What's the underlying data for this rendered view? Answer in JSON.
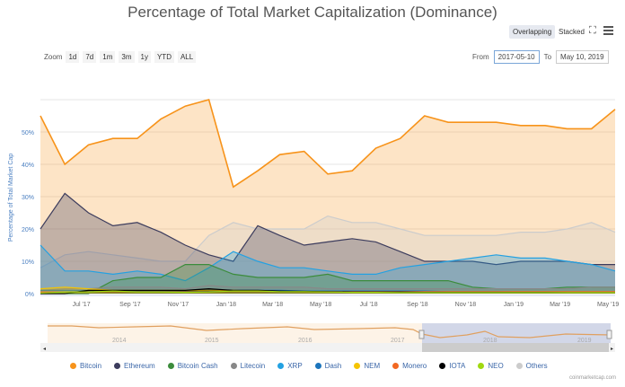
{
  "header": {
    "title": "Percentage of Total Market Capitalization (Dominance)",
    "overlapping": "Overlapping",
    "stacked": "Stacked"
  },
  "zoom": {
    "label": "Zoom",
    "buttons": [
      "1d",
      "7d",
      "1m",
      "3m",
      "1y",
      "YTD",
      "ALL"
    ]
  },
  "range": {
    "from_label": "From",
    "from": "2017-05-10",
    "to_label": "To",
    "to": "May 10, 2019"
  },
  "source": "coinmarketcap.com",
  "chart_data": {
    "type": "area",
    "title": "Percentage of Total Market Capitalization (Dominance)",
    "ylabel": "Percentage of Total Market Cap",
    "ylim": [
      0,
      60
    ],
    "yticks": [
      "0%",
      "10%",
      "20%",
      "30%",
      "40%",
      "50%"
    ],
    "xticks": [
      "Jul '17",
      "Sep '17",
      "Nov '17",
      "Jan '18",
      "Mar '18",
      "May '18",
      "Jul '18",
      "Sep '18",
      "Nov '18",
      "Jan '19",
      "Mar '19",
      "May '19"
    ],
    "xrange": [
      "2017-05-10",
      "2019-05-10"
    ],
    "grid": true,
    "legend": "bottom",
    "navigator_labels": [
      "2014",
      "2015",
      "2016",
      "2017",
      "2018",
      "2019"
    ],
    "dates": [
      "2017-05-10",
      "2017-06-10",
      "2017-07-10",
      "2017-08-10",
      "2017-09-10",
      "2017-10-10",
      "2017-11-10",
      "2017-12-10",
      "2018-01-10",
      "2018-02-10",
      "2018-03-10",
      "2018-04-10",
      "2018-05-10",
      "2018-06-10",
      "2018-07-10",
      "2018-08-10",
      "2018-09-10",
      "2018-10-10",
      "2018-11-10",
      "2018-12-10",
      "2019-01-10",
      "2019-02-10",
      "2019-03-10",
      "2019-04-10",
      "2019-05-10"
    ],
    "series": [
      {
        "name": "Bitcoin",
        "color": "#f7931a",
        "values": [
          55,
          40,
          46,
          48,
          48,
          54,
          58,
          60,
          33,
          38,
          43,
          44,
          37,
          38,
          45,
          48,
          55,
          53,
          53,
          53,
          52,
          52,
          51,
          51,
          57
        ]
      },
      {
        "name": "Others",
        "color": "#cccccc",
        "values": [
          8,
          12,
          13,
          12,
          11,
          10,
          10,
          18,
          22,
          20,
          20,
          20,
          24,
          22,
          22,
          20,
          18,
          18,
          18,
          18,
          19,
          19,
          20,
          22,
          19
        ]
      },
      {
        "name": "Ethereum",
        "color": "#3c3c5d",
        "values": [
          20,
          31,
          25,
          21,
          22,
          19,
          15,
          12,
          10,
          21,
          18,
          15,
          16,
          17,
          16,
          13,
          10,
          10,
          10,
          9,
          10,
          10,
          10,
          9,
          9
        ]
      },
      {
        "name": "XRP",
        "color": "#23a1e2",
        "values": [
          15,
          7,
          7,
          6,
          7,
          6,
          4,
          8,
          13,
          10,
          8,
          8,
          7,
          6,
          6,
          8,
          9,
          10,
          11,
          12,
          11,
          11,
          10,
          9,
          7
        ]
      },
      {
        "name": "Bitcoin Cash",
        "color": "#3c8c3c",
        "values": [
          0,
          0,
          0,
          4,
          5,
          5,
          9,
          9,
          6,
          5,
          5,
          5,
          6,
          4,
          4,
          4,
          4,
          4,
          2,
          1.5,
          1.5,
          1.5,
          2,
          2,
          2
        ]
      },
      {
        "name": "Litecoin",
        "color": "#888888",
        "values": [
          1,
          1.5,
          1.5,
          2,
          2,
          2,
          1.5,
          2.5,
          2,
          2,
          2,
          2,
          1.5,
          1.5,
          1.5,
          1.5,
          1.5,
          1.5,
          1.5,
          1.5,
          1.5,
          1.5,
          1.5,
          2,
          2
        ]
      },
      {
        "name": "Dash",
        "color": "#1c75bc",
        "values": [
          1,
          1,
          1,
          1,
          1,
          1,
          1,
          1,
          1,
          1,
          1,
          0.8,
          0.8,
          0.8,
          0.8,
          0.8,
          0.8,
          0.6,
          0.6,
          0.6,
          0.5,
          0.5,
          0.5,
          0.5,
          0.5
        ]
      },
      {
        "name": "NEM",
        "color": "#f5c400",
        "values": [
          1.5,
          2,
          1.5,
          1,
          1,
          1,
          1,
          1,
          1,
          0.8,
          0.6,
          0.5,
          0.5,
          0.4,
          0.4,
          0.4,
          0.4,
          0.3,
          0.3,
          0.3,
          0.3,
          0.3,
          0.3,
          0.3,
          0.3
        ]
      },
      {
        "name": "Monero",
        "color": "#f26822",
        "values": [
          0.5,
          0.5,
          0.5,
          0.5,
          0.5,
          0.5,
          0.5,
          0.5,
          0.6,
          0.6,
          0.6,
          0.6,
          0.6,
          0.6,
          0.6,
          0.6,
          0.6,
          0.6,
          0.6,
          0.6,
          0.6,
          0.6,
          0.6,
          0.6,
          0.6
        ]
      },
      {
        "name": "IOTA",
        "color": "#000000",
        "values": [
          0,
          0,
          1,
          1,
          1,
          1,
          1,
          1.5,
          1,
          1,
          0.8,
          0.7,
          0.6,
          0.5,
          0.5,
          0.5,
          0.4,
          0.4,
          0.4,
          0.4,
          0.4,
          0.4,
          0.3,
          0.3,
          0.3
        ]
      },
      {
        "name": "NEO",
        "color": "#a0d911",
        "values": [
          0.2,
          0.5,
          0.5,
          0.8,
          0.5,
          0.5,
          0.4,
          0.5,
          0.8,
          0.8,
          0.6,
          0.6,
          0.5,
          0.4,
          0.4,
          0.3,
          0.3,
          0.3,
          0.3,
          0.3,
          0.3,
          0.3,
          0.3,
          0.3,
          0.3
        ]
      }
    ]
  }
}
